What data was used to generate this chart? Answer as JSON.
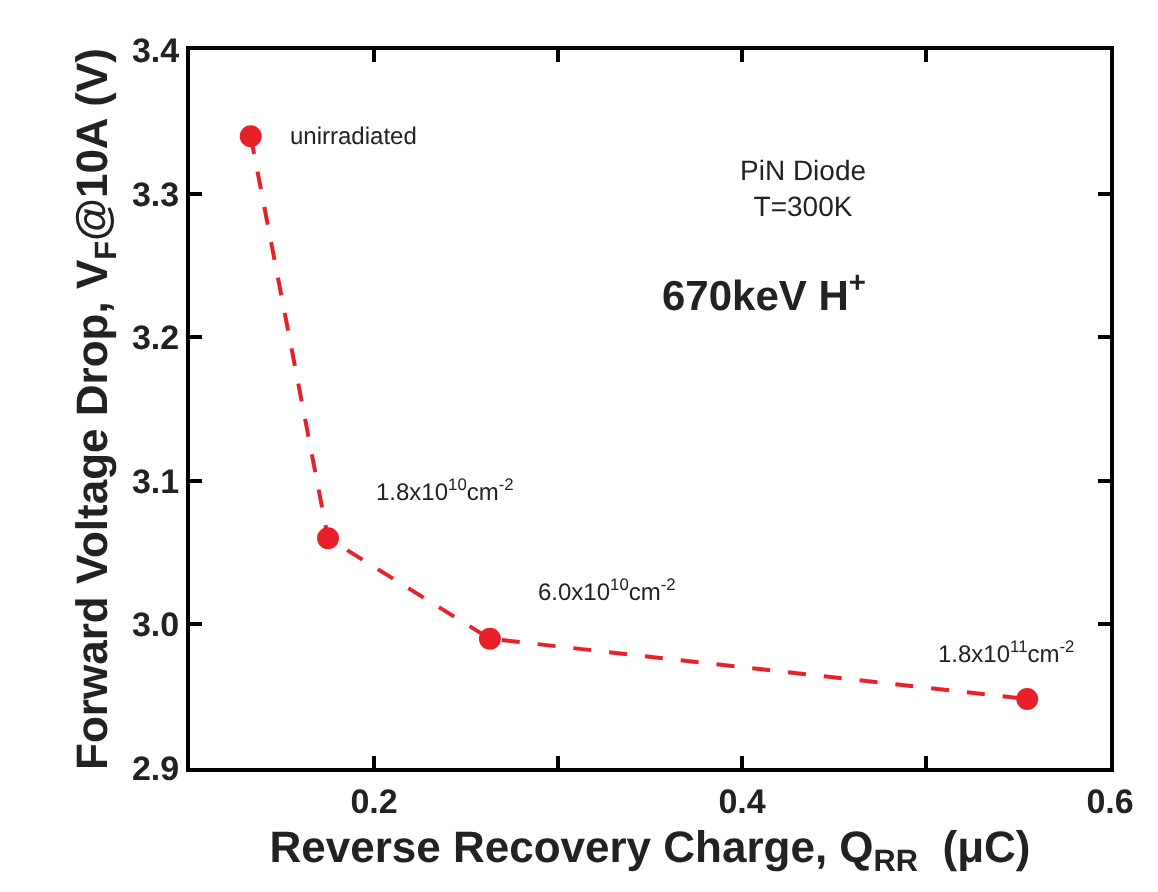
{
  "chart_data": {
    "type": "line",
    "xlabel": "Reverse Recovery Charge, Q$_{RR}$  (μC)",
    "ylabel": "Forward Voltage Drop, V$_{F}$@10A (V)",
    "x": [
      0.133,
      0.175,
      0.263,
      0.555
    ],
    "series": [
      {
        "color": "#e8202a",
        "values": [
          3.34,
          3.06,
          2.99,
          2.948
        ]
      }
    ],
    "marker": "circle",
    "line_style": "dashed",
    "legend": false,
    "xlim": [
      0.1,
      0.6
    ],
    "xticks": [
      {
        "value": 0.1,
        "label": null
      },
      0.2,
      {
        "value": 0.3,
        "label": null
      },
      0.4,
      {
        "value": 0.5,
        "label": null
      },
      0.6
    ],
    "ylim": [
      2.9,
      3.4
    ],
    "yticks": [
      2.9,
      {
        "value": 3.0,
        "label": "3.0"
      },
      3.1,
      3.2,
      3.3,
      3.4
    ],
    "annotations": [
      {
        "text": "unirradiated",
        "x": 0.133,
        "y": 3.34
      },
      {
        "text": "1.8x10$^{10}$cm$^{-2}$",
        "x": 0.175,
        "y": 3.06
      },
      {
        "text": "6.0x10$^{10}$cm$^{-2}$",
        "x": 0.263,
        "y": 2.99
      },
      {
        "text": "1.8x10$^{11}$cm$^{-2}$",
        "x": 0.555,
        "y": 2.948
      },
      "PiN Diode\nT=300K",
      "670keV H$^{+}$"
    ]
  }
}
